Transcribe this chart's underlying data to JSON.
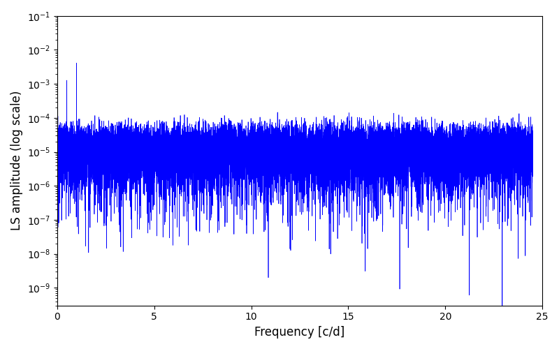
{
  "xlabel": "Frequency [c/d]",
  "ylabel": "LS amplitude (log scale)",
  "xlim": [
    0,
    25
  ],
  "ylim_log": [
    3e-10,
    0.1
  ],
  "line_color": "#0000ff",
  "line_width": 0.5,
  "freq_max": 24.5,
  "n_points": 15000,
  "figsize": [
    8.0,
    5.0
  ],
  "dpi": 100,
  "background_color": "#ffffff"
}
